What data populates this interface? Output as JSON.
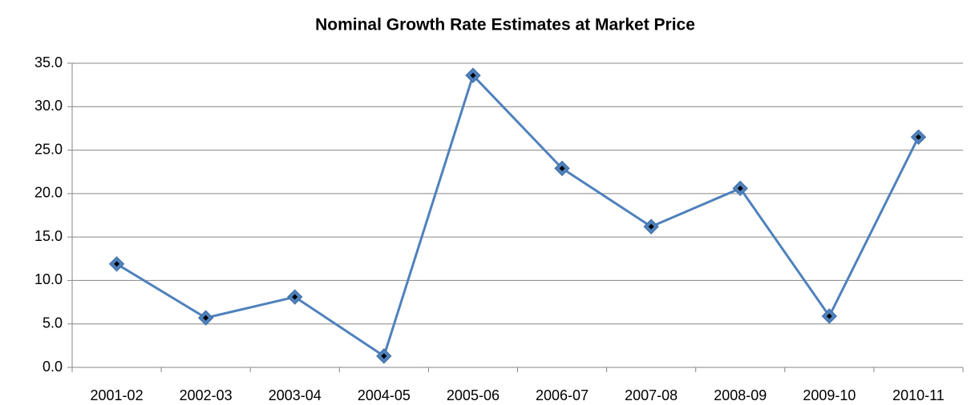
{
  "chart_data": {
    "type": "line",
    "title": "Nominal Growth Rate Estimates at Market Price",
    "categories": [
      "2001-02",
      "2002-03",
      "2003-04",
      "2004-05",
      "2005-06",
      "2006-07",
      "2007-08",
      "2008-09",
      "2009-10",
      "2010-11"
    ],
    "series": [
      {
        "name": "Nominal Growth Rate",
        "color": "#4f81bd",
        "values": [
          11.9,
          5.7,
          8.1,
          1.3,
          33.6,
          22.9,
          16.2,
          20.6,
          5.9,
          26.5
        ]
      }
    ],
    "ylim": [
      0,
      35
    ],
    "yticks": [
      {
        "value": 0,
        "label": "0.0"
      },
      {
        "value": 5,
        "label": "5.0"
      },
      {
        "value": 10,
        "label": "10.0"
      },
      {
        "value": 15,
        "label": "15.0"
      },
      {
        "value": 20,
        "label": "20.0"
      },
      {
        "value": 25,
        "label": "25.0"
      },
      {
        "value": 30,
        "label": "30.0"
      },
      {
        "value": 35,
        "label": "35.0"
      }
    ],
    "grid": true
  }
}
